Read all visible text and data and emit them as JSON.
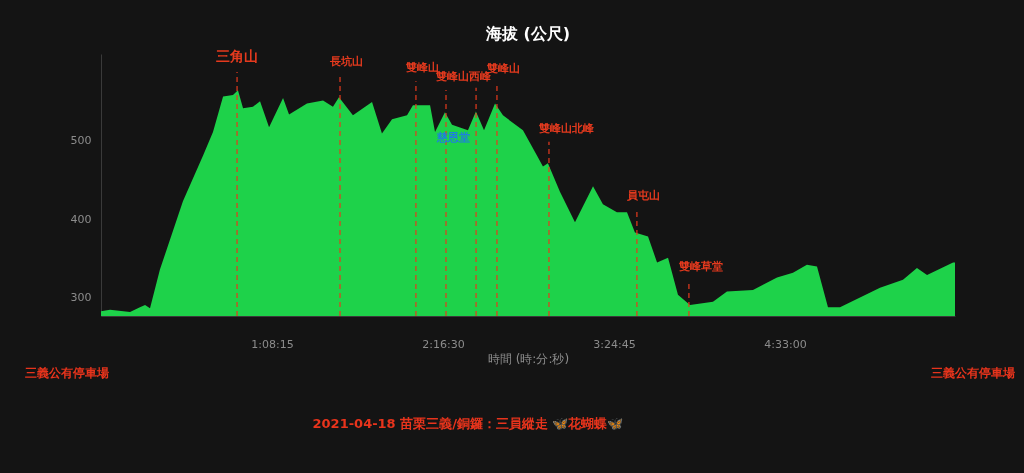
{
  "chart_data": {
    "type": "area",
    "title": "海拔 (公尺)",
    "xlabel": "時間 (時:分:秒)",
    "x": [
      0,
      0.06,
      0.193,
      0.259,
      0.293,
      0.326,
      0.392,
      0.545,
      0.679,
      0.745,
      0.812,
      0.878,
      0.911,
      0.945,
      1.011,
      1.058,
      1.118,
      1.211,
      1.251,
      1.37,
      1.477,
      1.543,
      1.583,
      1.676,
      1.803,
      1.869,
      1.936,
      2.036,
      2.075,
      2.189,
      2.222,
      2.288,
      2.335,
      2.441,
      2.494,
      2.548,
      2.621,
      2.674,
      2.807,
      2.9,
      2.94,
      2.973,
      3.053,
      3.153,
      3.273,
      3.339,
      3.432,
      3.499,
      3.552,
      3.639,
      3.699,
      3.772,
      3.838,
      3.918,
      4.071,
      4.164,
      4.337,
      4.497,
      4.603,
      4.696,
      4.763,
      4.836,
      4.916,
      5.182,
      5.335,
      5.428,
      5.495,
      5.668,
      5.681
    ],
    "series": [
      {
        "color": "#1ed24a",
        "values": [
          283,
          285,
          282,
          288,
          291,
          287,
          336,
          423,
          481,
          511,
          556,
          558,
          564,
          541,
          543,
          550,
          517,
          554,
          533,
          547,
          551,
          543,
          555,
          532,
          549,
          509,
          527,
          532,
          545,
          545,
          511,
          536,
          520,
          513,
          537,
          513,
          547,
          532,
          513,
          481,
          467,
          471,
          435,
          396,
          442,
          419,
          409,
          409,
          383,
          378,
          345,
          351,
          304,
          291,
          295,
          308,
          310,
          326,
          332,
          342,
          340,
          288,
          288,
          313,
          323,
          338,
          329,
          345,
          345
        ]
      }
    ],
    "xlim": [
      0,
      5.681
    ],
    "ylim": [
      277,
      610
    ],
    "xticks": [
      {
        "value": 1.1375,
        "label": "1:08:15"
      },
      {
        "value": 2.275,
        "label": "2:16:30"
      },
      {
        "value": 3.4125,
        "label": "3:24:45"
      },
      {
        "value": 4.55,
        "label": "4:33:00"
      }
    ],
    "yticks": [
      300,
      400,
      500
    ],
    "grid": false,
    "ref_lines": [
      {
        "axis": "x",
        "value": 0.905,
        "label": "三角山",
        "color": "#e53a1e",
        "line_style": "dashed"
      },
      {
        "axis": "x",
        "value": 1.59,
        "label": "長坑山",
        "color": "#e53a1e",
        "line_style": "dashed"
      },
      {
        "axis": "x",
        "value": 2.095,
        "label": "雙峰山",
        "color": "#e53a1e",
        "line_style": "dashed"
      },
      {
        "axis": "x",
        "value": 2.295,
        "label": "雙峰山西峰",
        "color": "#e53a1e",
        "line_style": "dashed"
      },
      {
        "axis": "x",
        "value": 2.495,
        "label": null,
        "color": "#e53a1e",
        "line_style": "dashed"
      },
      {
        "axis": "x",
        "value": 2.634,
        "label": "雙峰山",
        "color": "#e53a1e",
        "line_style": "dashed"
      },
      {
        "axis": "x",
        "value": 2.98,
        "label": "雙峰山北峰",
        "color": "#e53a1e",
        "line_style": "dashed"
      },
      {
        "axis": "x",
        "value": 3.565,
        "label": "員屯山",
        "color": "#e53a1e",
        "line_style": "dashed"
      },
      {
        "axis": "x",
        "value": 3.911,
        "label": "雙峰草堂",
        "color": "#e53a1e",
        "line_style": "dashed"
      }
    ],
    "annotations": [
      "慈恩堂",
      "三義公有停車場",
      "三義公有停車場",
      "2021-04-18 苗栗三義/銅鑼：三員縱走 🦋花蝴蝶🦋"
    ]
  }
}
